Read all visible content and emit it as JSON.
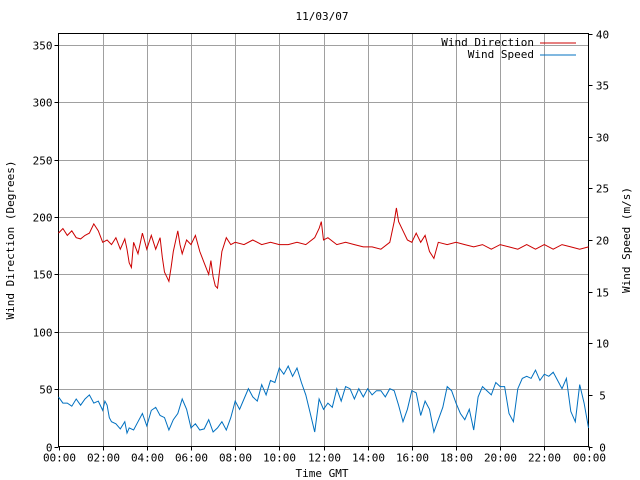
{
  "chart_data": {
    "type": "line",
    "title": "11/03/07",
    "xlabel": "Time GMT",
    "ylabel_left": "Wind Direction (Degrees)",
    "ylabel_right": "Wind Speed (m/s)",
    "x_ticks": [
      "00:00",
      "02:00",
      "04:00",
      "06:00",
      "08:00",
      "10:00",
      "12:00",
      "14:00",
      "16:00",
      "18:00",
      "20:00",
      "22:00",
      "00:00"
    ],
    "y_left_ticks": [
      0,
      50,
      100,
      150,
      200,
      250,
      300,
      350
    ],
    "y_right_ticks": [
      0,
      5,
      10,
      15,
      20,
      25,
      30,
      35,
      40
    ],
    "y_left_range": [
      0,
      360
    ],
    "y_right_range": [
      0,
      40
    ],
    "x_range_hours": [
      0,
      24
    ],
    "grid": true,
    "legend_position": "top-right",
    "series": [
      {
        "name": "Wind Direction",
        "axis": "left",
        "color": "#cc0000",
        "points": [
          [
            0.0,
            186
          ],
          [
            0.2,
            190
          ],
          [
            0.4,
            184
          ],
          [
            0.6,
            188
          ],
          [
            0.8,
            182
          ],
          [
            1.0,
            181
          ],
          [
            1.2,
            184
          ],
          [
            1.4,
            186
          ],
          [
            1.6,
            194
          ],
          [
            1.8,
            188
          ],
          [
            2.0,
            178
          ],
          [
            2.2,
            180
          ],
          [
            2.4,
            176
          ],
          [
            2.6,
            182
          ],
          [
            2.8,
            172
          ],
          [
            3.0,
            181
          ],
          [
            3.1,
            172
          ],
          [
            3.2,
            160
          ],
          [
            3.3,
            156
          ],
          [
            3.4,
            178
          ],
          [
            3.6,
            168
          ],
          [
            3.8,
            186
          ],
          [
            4.0,
            172
          ],
          [
            4.2,
            184
          ],
          [
            4.4,
            172
          ],
          [
            4.6,
            182
          ],
          [
            4.7,
            165
          ],
          [
            4.8,
            152
          ],
          [
            4.9,
            148
          ],
          [
            5.0,
            144
          ],
          [
            5.1,
            156
          ],
          [
            5.2,
            170
          ],
          [
            5.4,
            188
          ],
          [
            5.5,
            176
          ],
          [
            5.6,
            168
          ],
          [
            5.8,
            180
          ],
          [
            6.0,
            176
          ],
          [
            6.2,
            184
          ],
          [
            6.4,
            170
          ],
          [
            6.6,
            160
          ],
          [
            6.8,
            150
          ],
          [
            6.9,
            162
          ],
          [
            7.0,
            148
          ],
          [
            7.1,
            140
          ],
          [
            7.2,
            138
          ],
          [
            7.3,
            154
          ],
          [
            7.4,
            170
          ],
          [
            7.6,
            182
          ],
          [
            7.8,
            176
          ],
          [
            8.0,
            178
          ],
          [
            8.4,
            176
          ],
          [
            8.8,
            180
          ],
          [
            9.2,
            176
          ],
          [
            9.6,
            178
          ],
          [
            10.0,
            176
          ],
          [
            10.4,
            176
          ],
          [
            10.8,
            178
          ],
          [
            11.2,
            176
          ],
          [
            11.6,
            182
          ],
          [
            11.8,
            190
          ],
          [
            11.9,
            196
          ],
          [
            12.0,
            180
          ],
          [
            12.2,
            182
          ],
          [
            12.6,
            176
          ],
          [
            13.0,
            178
          ],
          [
            13.4,
            176
          ],
          [
            13.8,
            174
          ],
          [
            14.2,
            174
          ],
          [
            14.6,
            172
          ],
          [
            15.0,
            178
          ],
          [
            15.2,
            196
          ],
          [
            15.3,
            208
          ],
          [
            15.4,
            196
          ],
          [
            15.6,
            188
          ],
          [
            15.8,
            180
          ],
          [
            16.0,
            178
          ],
          [
            16.2,
            186
          ],
          [
            16.4,
            178
          ],
          [
            16.6,
            184
          ],
          [
            16.8,
            170
          ],
          [
            17.0,
            164
          ],
          [
            17.2,
            178
          ],
          [
            17.6,
            176
          ],
          [
            18.0,
            178
          ],
          [
            18.4,
            176
          ],
          [
            18.8,
            174
          ],
          [
            19.2,
            176
          ],
          [
            19.6,
            172
          ],
          [
            20.0,
            176
          ],
          [
            20.4,
            174
          ],
          [
            20.8,
            172
          ],
          [
            21.2,
            176
          ],
          [
            21.6,
            172
          ],
          [
            22.0,
            176
          ],
          [
            22.4,
            172
          ],
          [
            22.8,
            176
          ],
          [
            23.2,
            174
          ],
          [
            23.6,
            172
          ],
          [
            24.0,
            174
          ]
        ]
      },
      {
        "name": "Wind Speed",
        "axis": "right",
        "color": "#0070c0",
        "points": [
          [
            0.0,
            4.8
          ],
          [
            0.2,
            4.2
          ],
          [
            0.4,
            4.2
          ],
          [
            0.6,
            3.9
          ],
          [
            0.8,
            4.6
          ],
          [
            1.0,
            4.0
          ],
          [
            1.2,
            4.6
          ],
          [
            1.4,
            5.0
          ],
          [
            1.6,
            4.2
          ],
          [
            1.8,
            4.4
          ],
          [
            2.0,
            3.5
          ],
          [
            2.1,
            4.4
          ],
          [
            2.2,
            4.0
          ],
          [
            2.3,
            2.8
          ],
          [
            2.4,
            2.4
          ],
          [
            2.6,
            2.2
          ],
          [
            2.8,
            1.7
          ],
          [
            3.0,
            2.4
          ],
          [
            3.1,
            1.3
          ],
          [
            3.2,
            1.8
          ],
          [
            3.4,
            1.6
          ],
          [
            3.6,
            2.4
          ],
          [
            3.8,
            3.2
          ],
          [
            4.0,
            2.0
          ],
          [
            4.2,
            3.5
          ],
          [
            4.4,
            3.8
          ],
          [
            4.6,
            3.0
          ],
          [
            4.8,
            2.8
          ],
          [
            5.0,
            1.6
          ],
          [
            5.2,
            2.6
          ],
          [
            5.4,
            3.2
          ],
          [
            5.6,
            4.6
          ],
          [
            5.8,
            3.6
          ],
          [
            6.0,
            1.8
          ],
          [
            6.2,
            2.2
          ],
          [
            6.4,
            1.6
          ],
          [
            6.6,
            1.7
          ],
          [
            6.8,
            2.6
          ],
          [
            7.0,
            1.4
          ],
          [
            7.2,
            1.8
          ],
          [
            7.4,
            2.4
          ],
          [
            7.6,
            1.6
          ],
          [
            7.8,
            2.8
          ],
          [
            8.0,
            4.4
          ],
          [
            8.2,
            3.6
          ],
          [
            8.4,
            4.6
          ],
          [
            8.6,
            5.6
          ],
          [
            8.8,
            4.8
          ],
          [
            9.0,
            4.4
          ],
          [
            9.2,
            6.0
          ],
          [
            9.4,
            5.0
          ],
          [
            9.6,
            6.4
          ],
          [
            9.8,
            6.2
          ],
          [
            10.0,
            7.6
          ],
          [
            10.2,
            7.0
          ],
          [
            10.4,
            7.8
          ],
          [
            10.6,
            6.8
          ],
          [
            10.8,
            7.6
          ],
          [
            11.0,
            6.2
          ],
          [
            11.2,
            5.0
          ],
          [
            11.4,
            3.2
          ],
          [
            11.6,
            1.4
          ],
          [
            11.8,
            4.6
          ],
          [
            12.0,
            3.6
          ],
          [
            12.2,
            4.2
          ],
          [
            12.4,
            3.8
          ],
          [
            12.6,
            5.6
          ],
          [
            12.8,
            4.4
          ],
          [
            13.0,
            5.8
          ],
          [
            13.2,
            5.6
          ],
          [
            13.4,
            4.6
          ],
          [
            13.6,
            5.6
          ],
          [
            13.8,
            4.8
          ],
          [
            14.0,
            5.6
          ],
          [
            14.2,
            5.0
          ],
          [
            14.4,
            5.4
          ],
          [
            14.6,
            5.4
          ],
          [
            14.8,
            4.8
          ],
          [
            15.0,
            5.6
          ],
          [
            15.2,
            5.4
          ],
          [
            15.4,
            4.0
          ],
          [
            15.6,
            2.4
          ],
          [
            15.8,
            3.6
          ],
          [
            16.0,
            5.4
          ],
          [
            16.2,
            5.2
          ],
          [
            16.4,
            3.0
          ],
          [
            16.6,
            4.4
          ],
          [
            16.8,
            3.6
          ],
          [
            17.0,
            1.4
          ],
          [
            17.2,
            2.6
          ],
          [
            17.4,
            3.8
          ],
          [
            17.6,
            5.8
          ],
          [
            17.8,
            5.4
          ],
          [
            18.0,
            4.2
          ],
          [
            18.2,
            3.2
          ],
          [
            18.4,
            2.6
          ],
          [
            18.6,
            3.6
          ],
          [
            18.8,
            1.6
          ],
          [
            19.0,
            4.8
          ],
          [
            19.2,
            5.8
          ],
          [
            19.4,
            5.4
          ],
          [
            19.6,
            5.0
          ],
          [
            19.8,
            6.2
          ],
          [
            20.0,
            5.8
          ],
          [
            20.2,
            5.8
          ],
          [
            20.4,
            3.2
          ],
          [
            20.6,
            2.4
          ],
          [
            20.8,
            5.6
          ],
          [
            21.0,
            6.6
          ],
          [
            21.2,
            6.8
          ],
          [
            21.4,
            6.6
          ],
          [
            21.6,
            7.4
          ],
          [
            21.8,
            6.4
          ],
          [
            22.0,
            7.0
          ],
          [
            22.2,
            6.8
          ],
          [
            22.4,
            7.2
          ],
          [
            22.6,
            6.4
          ],
          [
            22.8,
            5.6
          ],
          [
            23.0,
            6.6
          ],
          [
            23.2,
            3.4
          ],
          [
            23.4,
            2.4
          ],
          [
            23.6,
            6.0
          ],
          [
            23.8,
            4.2
          ],
          [
            24.0,
            1.8
          ]
        ]
      }
    ]
  }
}
